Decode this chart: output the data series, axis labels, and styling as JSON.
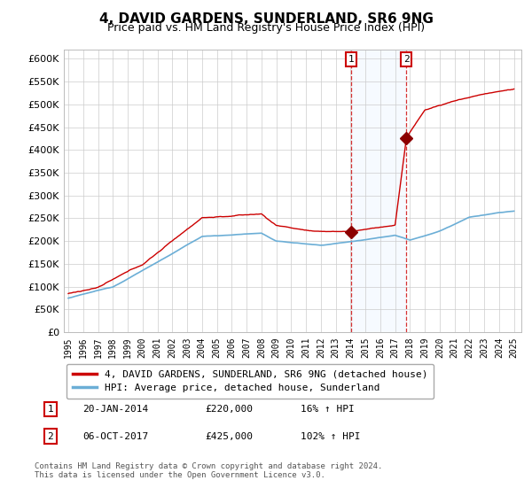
{
  "title": "4, DAVID GARDENS, SUNDERLAND, SR6 9NG",
  "subtitle": "Price paid vs. HM Land Registry's House Price Index (HPI)",
  "ylim": [
    0,
    620000
  ],
  "yticks": [
    0,
    50000,
    100000,
    150000,
    200000,
    250000,
    300000,
    350000,
    400000,
    450000,
    500000,
    550000,
    600000
  ],
  "xlim_start": 1994.7,
  "xlim_end": 2025.5,
  "xticks": [
    1995,
    1996,
    1997,
    1998,
    1999,
    2000,
    2001,
    2002,
    2003,
    2004,
    2005,
    2006,
    2007,
    2008,
    2009,
    2010,
    2011,
    2012,
    2013,
    2014,
    2015,
    2016,
    2017,
    2018,
    2019,
    2020,
    2021,
    2022,
    2023,
    2024,
    2025
  ],
  "hpi_color": "#6baed6",
  "price_color": "#cc0000",
  "marker_color": "#8b0000",
  "transaction1_x": 2014.05,
  "transaction1_y": 220000,
  "transaction2_x": 2017.76,
  "transaction2_y": 425000,
  "transaction1_label": "1",
  "transaction2_label": "2",
  "legend_line1": "4, DAVID GARDENS, SUNDERLAND, SR6 9NG (detached house)",
  "legend_line2": "HPI: Average price, detached house, Sunderland",
  "annotation1_date": "20-JAN-2014",
  "annotation1_price": "£220,000",
  "annotation1_hpi": "16% ↑ HPI",
  "annotation2_date": "06-OCT-2017",
  "annotation2_price": "£425,000",
  "annotation2_hpi": "102% ↑ HPI",
  "footer": "Contains HM Land Registry data © Crown copyright and database right 2024.\nThis data is licensed under the Open Government Licence v3.0.",
  "background_color": "#ffffff",
  "grid_color": "#cccccc",
  "span_color": "#ddeeff"
}
